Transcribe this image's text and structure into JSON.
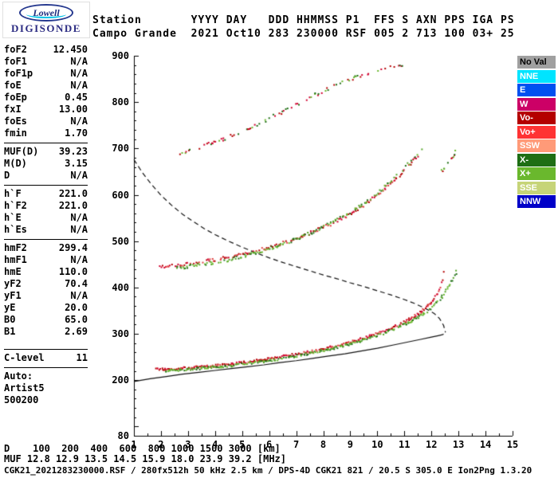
{
  "logo": {
    "brand": "Lowell",
    "product": "DIGISONDE"
  },
  "header": {
    "line1": "Station       YYYY DAY   DDD HHMMSS P1  FFS S AXN PPS IGA PS",
    "line2": "Campo Grande  2021 Oct10 283 230000 RSF 005 2 713 100 03+ 25"
  },
  "params": {
    "groups": [
      {
        "rows": [
          {
            "name": "foF2",
            "value": "12.450"
          },
          {
            "name": "foF1",
            "value": "N/A"
          },
          {
            "name": "foF1p",
            "value": "N/A"
          },
          {
            "name": "foE",
            "value": "N/A"
          },
          {
            "name": "foEp",
            "value": "0.45"
          },
          {
            "name": "fxI",
            "value": "13.00"
          },
          {
            "name": "foEs",
            "value": "N/A"
          },
          {
            "name": "fmin",
            "value": "1.70"
          }
        ]
      },
      {
        "rows": [
          {
            "name": "MUF(D)",
            "value": "39.23"
          },
          {
            "name": "M(D)",
            "value": "3.15"
          },
          {
            "name": "D",
            "value": "N/A"
          }
        ]
      },
      {
        "rows": [
          {
            "name": "h`F",
            "value": "221.0"
          },
          {
            "name": "h`F2",
            "value": "221.0"
          },
          {
            "name": "h`E",
            "value": "N/A"
          },
          {
            "name": "h`Es",
            "value": "N/A"
          }
        ]
      },
      {
        "rows": [
          {
            "name": "hmF2",
            "value": "299.4"
          },
          {
            "name": "hmF1",
            "value": "N/A"
          },
          {
            "name": "hmE",
            "value": "110.0"
          },
          {
            "name": "yF2",
            "value": "70.4"
          },
          {
            "name": "yF1",
            "value": "N/A"
          },
          {
            "name": "yE",
            "value": "20.0"
          },
          {
            "name": "B0",
            "value": "65.0"
          },
          {
            "name": "B1",
            "value": "2.69"
          }
        ]
      },
      {
        "rows": [
          {
            "name": "C-level",
            "value": "11"
          }
        ]
      }
    ],
    "footer": [
      "Auto:",
      "Artist5",
      "500200"
    ]
  },
  "legend": {
    "items": [
      {
        "label": "No Val",
        "color": "#a0a0a0",
        "text_color": "#000000"
      },
      {
        "label": "NNE",
        "color": "#00e4ff",
        "text_color": "#ffffff"
      },
      {
        "label": "E",
        "color": "#0050f0",
        "text_color": "#ffffff"
      },
      {
        "label": "W",
        "color": "#cc0066",
        "text_color": "#ffffff"
      },
      {
        "label": "Vo-",
        "color": "#b40000",
        "text_color": "#ffffff"
      },
      {
        "label": "Vo+",
        "color": "#ff3333",
        "text_color": "#ffffff"
      },
      {
        "label": "SSW",
        "color": "#ff9a78",
        "text_color": "#ffffff"
      },
      {
        "label": "X-",
        "color": "#1e6e14",
        "text_color": "#ffffff"
      },
      {
        "label": "X+",
        "color": "#6ab82d",
        "text_color": "#ffffff"
      },
      {
        "label": "SSE",
        "color": "#c6d478",
        "text_color": "#ffffff"
      },
      {
        "label": "NNW",
        "color": "#0000c8",
        "text_color": "#ffffff"
      }
    ]
  },
  "footer": {
    "d_line": "D    100  200  400  600  800 1000 1500 3000 [km]",
    "muf_line": "MUF 12.8 12.9 13.5 14.5 15.9 18.0 23.9 39.2 [MHz]",
    "file_line": "CGK21_2021283230000.RSF / 280fx512h 50 kHz 2.5 km / DPS-4D CGK21 821 / 20.5 S 305.0 E Ion2Png 1.3.20"
  },
  "chart_data": {
    "type": "scatter",
    "title": "Digisonde ionogram, Campo Grande 2021-283 23:00:00",
    "xlabel": "[MHz]",
    "ylabel": "[km]",
    "xlim": [
      1,
      15
    ],
    "ylim": [
      80,
      900
    ],
    "x_ticks": [
      1,
      2,
      3,
      4,
      5,
      6,
      7,
      8,
      9,
      10,
      11,
      12,
      13,
      14,
      15
    ],
    "y_ticks": [
      900,
      800,
      700,
      600,
      500,
      400,
      300,
      200,
      80
    ],
    "grid": false,
    "legend_position": "right",
    "palettes": {
      "o": [
        "#b40000",
        "#d20030",
        "#e04040"
      ],
      "x": [
        "#1e6e14",
        "#55a528",
        "#6ab82d"
      ],
      "mix": [
        "#b40000",
        "#d20030",
        "#1e6e14",
        "#6ab82d"
      ]
    },
    "series": [
      {
        "name": "muf-transmission-curve",
        "style": "dashed",
        "color": "#111111",
        "dash": [
          6,
          4
        ],
        "points": [
          [
            1.0,
            676
          ],
          [
            1.3,
            649
          ],
          [
            1.6,
            626
          ],
          [
            2.0,
            599
          ],
          [
            2.4,
            577
          ],
          [
            2.8,
            558
          ],
          [
            3.2,
            542
          ],
          [
            3.6,
            527
          ],
          [
            4.0,
            514
          ],
          [
            4.5,
            500
          ],
          [
            5.0,
            487
          ],
          [
            5.5,
            475
          ],
          [
            6.0,
            464
          ],
          [
            6.5,
            454
          ],
          [
            7.0,
            445
          ],
          [
            7.5,
            436
          ],
          [
            8.0,
            427
          ],
          [
            8.5,
            419
          ],
          [
            9.0,
            410
          ],
          [
            9.5,
            402
          ],
          [
            10.0,
            393
          ],
          [
            10.5,
            384
          ],
          [
            11.0,
            374
          ],
          [
            11.4,
            365
          ],
          [
            11.8,
            354
          ],
          [
            12.1,
            344
          ],
          [
            12.3,
            333
          ],
          [
            12.45,
            318
          ],
          [
            12.52,
            303
          ]
        ]
      },
      {
        "name": "true-height-profile",
        "style": "line",
        "color": "#111111",
        "points": [
          [
            1.0,
            197
          ],
          [
            1.6,
            203
          ],
          [
            2.2,
            208
          ],
          [
            2.8,
            213
          ],
          [
            3.4,
            217
          ],
          [
            4.0,
            221
          ],
          [
            4.6,
            225
          ],
          [
            5.2,
            229
          ],
          [
            5.8,
            233
          ],
          [
            6.4,
            238
          ],
          [
            7.0,
            242
          ],
          [
            7.6,
            247
          ],
          [
            8.2,
            252
          ],
          [
            8.8,
            257
          ],
          [
            9.4,
            263
          ],
          [
            10.0,
            269
          ],
          [
            10.6,
            276
          ],
          [
            11.1,
            282
          ],
          [
            11.6,
            288
          ],
          [
            12.0,
            293
          ],
          [
            12.25,
            296
          ],
          [
            12.4,
            298
          ],
          [
            12.45,
            299.4
          ]
        ]
      },
      {
        "name": "f-trace-o-mode",
        "style": "dots",
        "palette": "o",
        "step": 0.035,
        "skip": 0.15,
        "jitter": 3,
        "size": 2,
        "points": [
          [
            1.75,
            226
          ],
          [
            2.0,
            225
          ],
          [
            2.3,
            226
          ],
          [
            2.7,
            227
          ],
          [
            3.0,
            228
          ],
          [
            3.4,
            230
          ],
          [
            3.8,
            232
          ],
          [
            4.2,
            234
          ],
          [
            4.6,
            237
          ],
          [
            5.0,
            240
          ],
          [
            5.4,
            243
          ],
          [
            5.8,
            246
          ],
          [
            6.2,
            250
          ],
          [
            6.6,
            254
          ],
          [
            7.0,
            258
          ],
          [
            7.4,
            262
          ],
          [
            7.8,
            267
          ],
          [
            8.2,
            272
          ],
          [
            8.6,
            278
          ],
          [
            9.0,
            284
          ],
          [
            9.4,
            291
          ],
          [
            9.8,
            299
          ],
          [
            10.2,
            307
          ],
          [
            10.6,
            317
          ],
          [
            11.0,
            328
          ],
          [
            11.3,
            338
          ],
          [
            11.6,
            350
          ],
          [
            11.85,
            362
          ],
          [
            12.05,
            375
          ],
          [
            12.2,
            389
          ],
          [
            12.32,
            404
          ],
          [
            12.4,
            420
          ],
          [
            12.45,
            435
          ],
          [
            12.48,
            447
          ]
        ]
      },
      {
        "name": "f-trace-x-mode",
        "style": "dots",
        "palette": "x",
        "step": 0.035,
        "skip": 0.2,
        "jitter": 3,
        "size": 2,
        "points": [
          [
            2.1,
            222
          ],
          [
            2.4,
            223
          ],
          [
            2.8,
            224
          ],
          [
            3.2,
            226
          ],
          [
            3.6,
            228
          ],
          [
            4.0,
            230
          ],
          [
            4.4,
            232
          ],
          [
            4.8,
            235
          ],
          [
            5.2,
            238
          ],
          [
            5.6,
            241
          ],
          [
            6.0,
            244
          ],
          [
            6.4,
            248
          ],
          [
            6.8,
            252
          ],
          [
            7.2,
            256
          ],
          [
            7.6,
            261
          ],
          [
            8.0,
            266
          ],
          [
            8.4,
            271
          ],
          [
            8.8,
            277
          ],
          [
            9.2,
            283
          ],
          [
            9.6,
            290
          ],
          [
            10.0,
            298
          ],
          [
            10.4,
            307
          ],
          [
            10.8,
            317
          ],
          [
            11.2,
            328
          ],
          [
            11.5,
            338
          ],
          [
            11.8,
            350
          ],
          [
            12.05,
            362
          ],
          [
            12.25,
            374
          ],
          [
            12.45,
            388
          ],
          [
            12.6,
            402
          ],
          [
            12.75,
            418
          ],
          [
            12.87,
            433
          ],
          [
            12.95,
            446
          ]
        ]
      },
      {
        "name": "second-hop-o-mode",
        "style": "dots",
        "palette": "o",
        "step": 0.045,
        "skip": 0.3,
        "jitter": 4,
        "size": 2,
        "points": [
          [
            1.95,
            446
          ],
          [
            2.4,
            449
          ],
          [
            2.9,
            452
          ],
          [
            3.4,
            456
          ],
          [
            3.9,
            461
          ],
          [
            4.4,
            466
          ],
          [
            4.9,
            472
          ],
          [
            5.4,
            479
          ],
          [
            5.9,
            487
          ],
          [
            6.4,
            496
          ],
          [
            6.9,
            506
          ],
          [
            7.4,
            517
          ],
          [
            7.9,
            529
          ],
          [
            8.4,
            543
          ],
          [
            8.9,
            558
          ],
          [
            9.3,
            573
          ],
          [
            9.7,
            589
          ],
          [
            10.1,
            607
          ],
          [
            10.4,
            622
          ],
          [
            10.7,
            638
          ],
          [
            11.0,
            655
          ],
          [
            11.2,
            668
          ],
          [
            11.35,
            679
          ],
          [
            11.5,
            691
          ]
        ]
      },
      {
        "name": "second-hop-x-mode",
        "style": "dots",
        "palette": "x",
        "step": 0.045,
        "skip": 0.35,
        "jitter": 4,
        "size": 2,
        "points": [
          [
            2.5,
            443
          ],
          [
            3.0,
            447
          ],
          [
            3.5,
            451
          ],
          [
            4.0,
            456
          ],
          [
            4.5,
            462
          ],
          [
            5.0,
            469
          ],
          [
            5.5,
            477
          ],
          [
            6.0,
            486
          ],
          [
            6.5,
            496
          ],
          [
            7.0,
            507
          ],
          [
            7.5,
            519
          ],
          [
            8.0,
            533
          ],
          [
            8.5,
            548
          ],
          [
            9.0,
            565
          ],
          [
            9.4,
            581
          ],
          [
            9.8,
            598
          ],
          [
            10.2,
            617
          ],
          [
            10.5,
            633
          ],
          [
            10.8,
            650
          ],
          [
            11.1,
            667
          ],
          [
            11.35,
            682
          ],
          [
            11.55,
            694
          ],
          [
            11.7,
            702
          ]
        ]
      },
      {
        "name": "second-hop-x-tip",
        "style": "dots",
        "palette": "mix",
        "step": 0.04,
        "skip": 0.3,
        "jitter": 4,
        "size": 2,
        "points": [
          [
            12.35,
            652
          ],
          [
            12.5,
            664
          ],
          [
            12.65,
            676
          ],
          [
            12.8,
            688
          ],
          [
            12.92,
            698
          ]
        ]
      },
      {
        "name": "third-hop-multiples",
        "style": "dots",
        "palette": "mix",
        "step": 0.05,
        "skip": 0.5,
        "jitter": 4,
        "size": 2,
        "points": [
          [
            2.6,
            688
          ],
          [
            3.0,
            696
          ],
          [
            3.4,
            704
          ],
          [
            3.8,
            712
          ],
          [
            4.2,
            720
          ],
          [
            4.6,
            729
          ],
          [
            5.0,
            740
          ],
          [
            5.4,
            750
          ],
          [
            5.8,
            761
          ],
          [
            6.2,
            773
          ],
          [
            6.6,
            785
          ],
          [
            7.0,
            797
          ],
          [
            7.4,
            809
          ],
          [
            7.8,
            821
          ],
          [
            8.2,
            832
          ],
          [
            8.6,
            843
          ],
          [
            9.0,
            852
          ],
          [
            9.4,
            860
          ],
          [
            9.8,
            867
          ],
          [
            10.2,
            873
          ],
          [
            10.6,
            878
          ],
          [
            11.0,
            882
          ]
        ]
      }
    ]
  }
}
